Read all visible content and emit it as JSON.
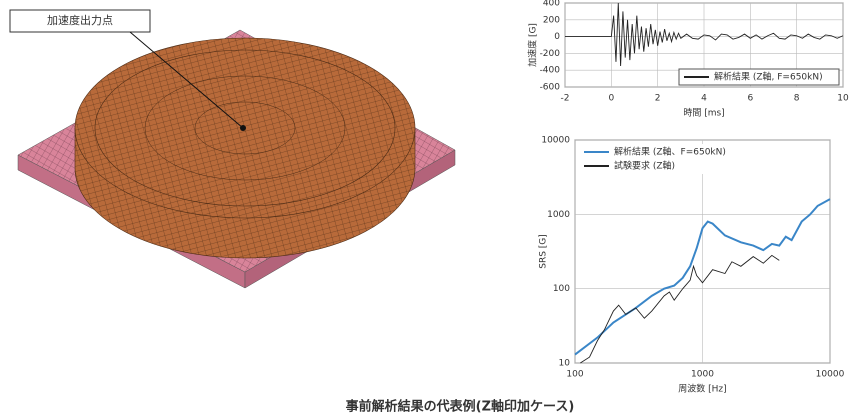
{
  "callout": "加速度出力点",
  "caption": "事前解析結果の代表例(Z軸印加ケース)",
  "chart_data": [
    {
      "type": "line",
      "xlabel": "時間 [ms]",
      "ylabel": "加速度 [G]",
      "xlim": [
        -2,
        10
      ],
      "xticks": [
        -2,
        0,
        2,
        4,
        6,
        8,
        10
      ],
      "ylim": [
        -600,
        400
      ],
      "yticks": [
        -600,
        -400,
        -200,
        0,
        200,
        400
      ],
      "grid": true,
      "legend": "lower right",
      "xscale": "linear",
      "yscale": "linear",
      "series": [
        {
          "name": "解析結果 (Z軸, F=650kN)",
          "color": "#222222",
          "x": [
            -2,
            0,
            0.1,
            0.2,
            0.3,
            0.4,
            0.5,
            0.6,
            0.7,
            0.8,
            0.9,
            1.0,
            1.1,
            1.2,
            1.3,
            1.4,
            1.5,
            1.6,
            1.7,
            1.8,
            1.9,
            2.0,
            2.1,
            2.2,
            2.3,
            2.4,
            2.5,
            2.6,
            2.7,
            2.8,
            2.9,
            3.0,
            3.25,
            3.5,
            3.75,
            4.0,
            4.25,
            4.5,
            4.75,
            5.0,
            5.25,
            5.5,
            5.75,
            6.0,
            6.25,
            6.5,
            6.75,
            7.0,
            7.25,
            7.5,
            7.75,
            8.0,
            8.25,
            8.5,
            8.75,
            9.0,
            9.25,
            9.5,
            9.75,
            10.0
          ],
          "values": [
            0,
            0,
            250,
            -300,
            400,
            -350,
            300,
            -250,
            200,
            -280,
            150,
            -200,
            250,
            -150,
            120,
            -180,
            100,
            -120,
            150,
            -90,
            80,
            -110,
            60,
            -70,
            90,
            -50,
            40,
            -60,
            50,
            -30,
            40,
            -20,
            30,
            -20,
            -30,
            20,
            10,
            -40,
            30,
            20,
            -30,
            -10,
            30,
            -20,
            20,
            -30,
            10,
            40,
            -20,
            -30,
            20,
            10,
            -20,
            30,
            -10,
            -30,
            20,
            10,
            -20,
            10
          ]
        }
      ]
    },
    {
      "type": "line",
      "xlabel": "周波数 [Hz]",
      "ylabel": "SRS [G]",
      "xlim": [
        100,
        10000
      ],
      "xticks": [
        100,
        1000,
        10000
      ],
      "ylim": [
        10,
        10000
      ],
      "yticks": [
        10,
        100,
        1000,
        10000
      ],
      "grid": true,
      "legend": "upper left",
      "xscale": "log",
      "yscale": "log",
      "series": [
        {
          "name": "解析結果 (Z軸、F=650kN)",
          "color": "#3a86c8",
          "x": [
            100,
            150,
            200,
            300,
            400,
            500,
            600,
            700,
            800,
            900,
            1000,
            1100,
            1200,
            1500,
            2000,
            2500,
            3000,
            3500,
            4000,
            4500,
            5000,
            6000,
            7000,
            8000,
            10000
          ],
          "values": [
            13,
            22,
            35,
            55,
            80,
            100,
            110,
            140,
            200,
            350,
            650,
            800,
            750,
            520,
            420,
            380,
            330,
            400,
            380,
            500,
            450,
            800,
            1000,
            1300,
            1600
          ]
        },
        {
          "name": "試験要求 (Z軸)",
          "color": "#222222",
          "x": [
            110,
            130,
            150,
            170,
            200,
            220,
            250,
            300,
            350,
            400,
            500,
            550,
            600,
            700,
            800,
            850,
            900,
            1000,
            1200,
            1500,
            1700,
            2000,
            2500,
            3000,
            3500,
            4000
          ],
          "values": [
            10,
            12,
            20,
            28,
            50,
            60,
            45,
            55,
            40,
            50,
            80,
            90,
            70,
            100,
            130,
            200,
            150,
            120,
            180,
            160,
            230,
            200,
            270,
            220,
            280,
            240
          ]
        }
      ]
    }
  ]
}
